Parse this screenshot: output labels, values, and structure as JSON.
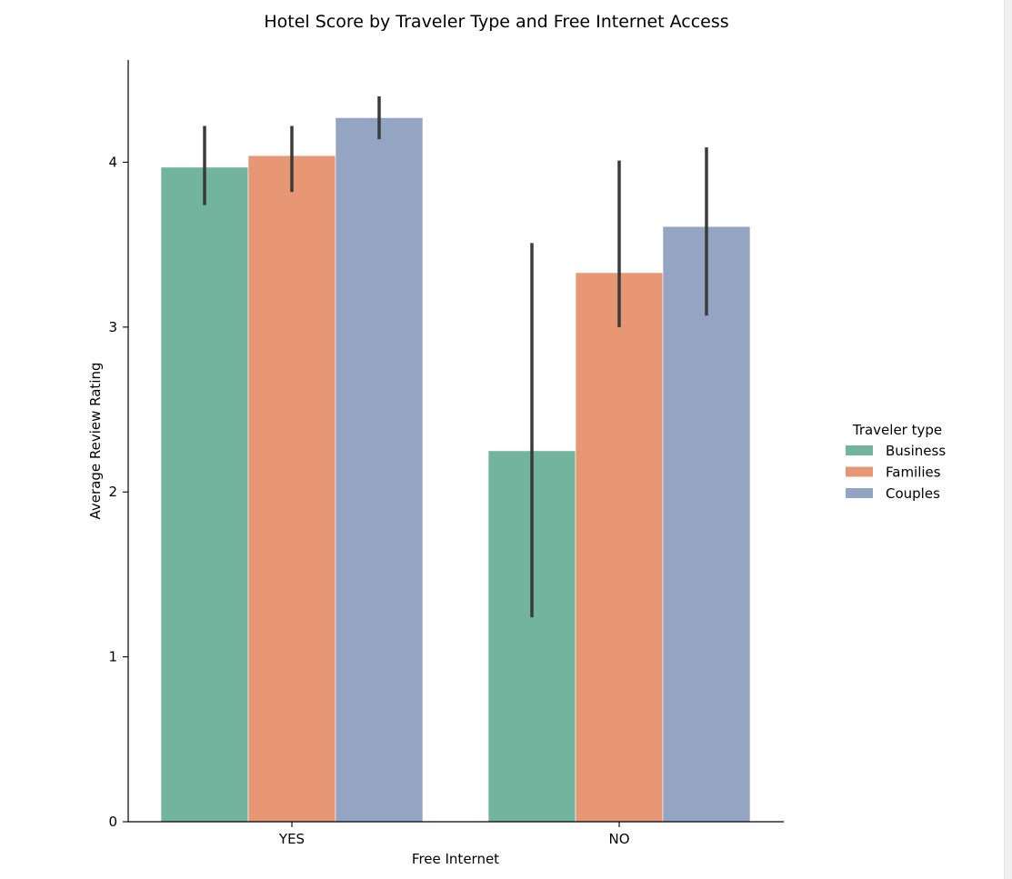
{
  "chart_data": {
    "type": "bar",
    "title": "Hotel Score by Traveler Type and Free Internet Access",
    "xlabel": "Free Internet",
    "ylabel": "Average Review Rating",
    "categories": [
      "YES",
      "NO"
    ],
    "ylim": [
      0,
      4.62
    ],
    "yticks": [
      0,
      1,
      2,
      3,
      4
    ],
    "grid": false,
    "legend": {
      "title": "Traveler type",
      "placement": "center-right"
    },
    "series": [
      {
        "name": "Business",
        "color": "#73b49f",
        "values": [
          3.97,
          2.25
        ],
        "ci": [
          [
            3.74,
            4.22
          ],
          [
            1.24,
            3.51
          ]
        ]
      },
      {
        "name": "Families",
        "color": "#e79773",
        "values": [
          4.04,
          3.33
        ],
        "ci": [
          [
            3.82,
            4.22
          ],
          [
            3.0,
            4.01
          ]
        ]
      },
      {
        "name": "Couples",
        "color": "#94a4c3",
        "values": [
          4.27,
          3.61
        ],
        "ci": [
          [
            4.14,
            4.4
          ],
          [
            3.07,
            4.09
          ]
        ]
      }
    ]
  }
}
